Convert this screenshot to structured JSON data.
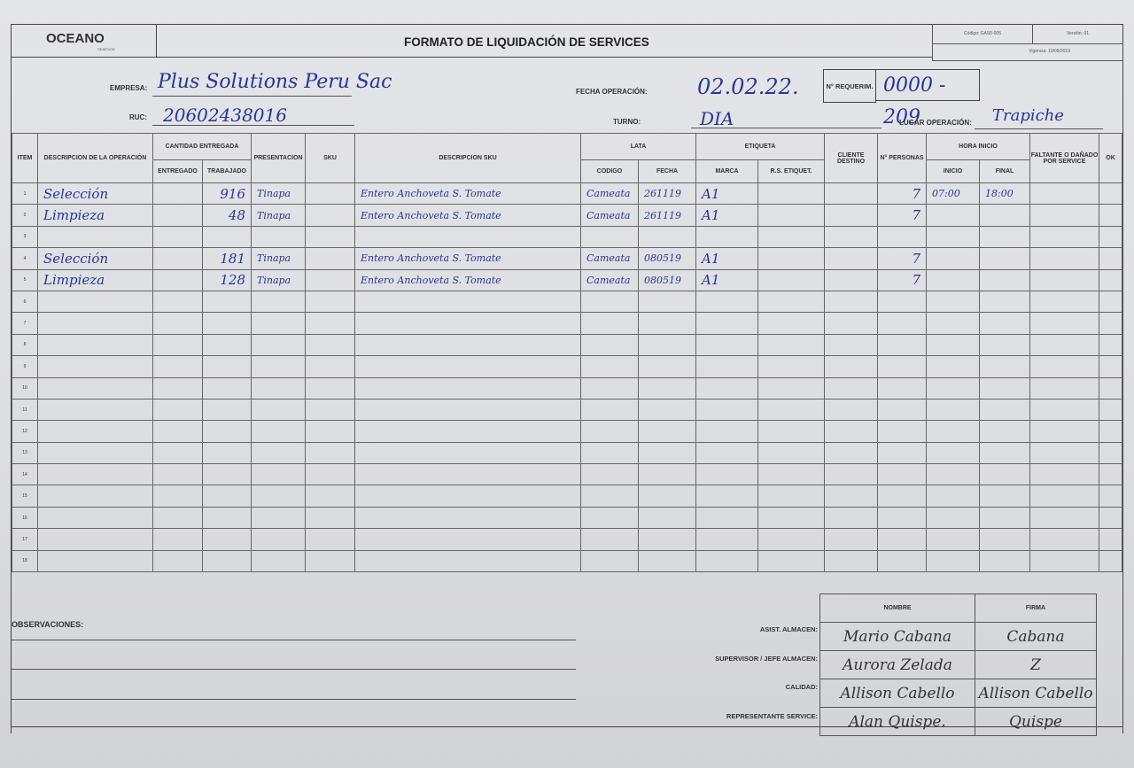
{
  "header": {
    "logo": "OCEANO",
    "logo_sub": "SEAFOOD",
    "title": "FORMATO DE LIQUIDACIÓN DE SERVICES",
    "codigo": "Código: GAS0-005",
    "version": "Versión: 01",
    "vigencia": "Vigencia: 10/05/2019"
  },
  "info": {
    "empresa_label": "EMPRESA:",
    "empresa_value": "Plus Solutions Peru Sac",
    "ruc_label": "RUC:",
    "ruc_value": "20602438016",
    "fecha_label": "FECHA OPERACIÓN:",
    "fecha_value": "02.02.22.",
    "requerim_label": "N° REQUERIM.",
    "requerim_value": "0000 - 209",
    "turno_label": "TURNO:",
    "turno_value": "DIA",
    "lugar_label": "LUGAR OPERACIÓN:",
    "lugar_value": "Trapiche"
  },
  "columns": {
    "item": "ITEM",
    "descripcion": "DESCRIPCION DE LA OPERACIÓN",
    "cantidad": "CANTIDAD ENTREGADA",
    "entregado": "ENTREGADO",
    "trabajado": "TRABAJADO",
    "presentacion": "PRESENTACION",
    "sku": "SKU",
    "descripcion_sku": "DESCRIPCION SKU",
    "lata": "LATA",
    "codigo": "CODIGO",
    "fecha": "FECHA",
    "etiqueta": "ETIQUETA",
    "marca": "MARCA",
    "rs_etiquet": "R.S. ETIQUET.",
    "cliente": "CLIENTE DESTINO",
    "personas": "N° PERSONAS",
    "hora": "HORA INICIO",
    "inicio": "INICIO",
    "final": "FINAL",
    "faltante": "FALTANTE O DAÑADO POR SERVICE",
    "ok": "OK"
  },
  "rows": [
    {
      "item": "1",
      "desc": "Selección",
      "trabajado": "916",
      "pres": "Tinapa",
      "desc_sku": "Entero Anchoveta S. Tomate",
      "codigo": "Cameata",
      "fecha": "261119",
      "marca": "A1",
      "personas": "7",
      "inicio": "07:00",
      "final": "18:00"
    },
    {
      "item": "2",
      "desc": "Limpieza",
      "trabajado": "48",
      "pres": "Tinapa",
      "desc_sku": "Entero Anchoveta S. Tomate",
      "codigo": "Cameata",
      "fecha": "261119",
      "marca": "A1",
      "personas": "7"
    },
    {
      "item": "3"
    },
    {
      "item": "4",
      "desc": "Selección",
      "trabajado": "181",
      "pres": "Tinapa",
      "desc_sku": "Entero Anchoveta S. Tomate",
      "codigo": "Cameata",
      "fecha": "080519",
      "marca": "A1",
      "personas": "7"
    },
    {
      "item": "5",
      "desc": "Limpieza",
      "trabajado": "128",
      "pres": "Tinapa",
      "desc_sku": "Entero Anchoveta S. Tomate",
      "codigo": "Cameata",
      "fecha": "080519",
      "marca": "A1",
      "personas": "7"
    },
    {
      "item": "6"
    },
    {
      "item": "7"
    },
    {
      "item": "8"
    },
    {
      "item": "9"
    },
    {
      "item": "10"
    },
    {
      "item": "11"
    },
    {
      "item": "12"
    },
    {
      "item": "13"
    },
    {
      "item": "14"
    },
    {
      "item": "15"
    },
    {
      "item": "16"
    },
    {
      "item": "17"
    },
    {
      "item": "18"
    }
  ],
  "observaciones_label": "OBSERVACIONES:",
  "signatures": {
    "nombre_header": "NOMBRE",
    "firma_header": "FIRMA",
    "entries": [
      {
        "role": "ASIST. ALMACEN:",
        "name": "Mario Cabana",
        "signature": "Cabana"
      },
      {
        "role": "SUPERVISOR / JEFE ALMACEN:",
        "name": "Aurora Zelada",
        "signature": "Z"
      },
      {
        "role": "CALIDAD:",
        "name": "Allison Cabello",
        "signature": "Allison Cabello"
      },
      {
        "role": "REPRESENTANTE SERVICE:",
        "name": "Alan Quispe.",
        "signature": "Quispe"
      }
    ]
  },
  "colors": {
    "ink": "#2b3596",
    "paper": "#e0e1e5",
    "rule": "#555555"
  }
}
